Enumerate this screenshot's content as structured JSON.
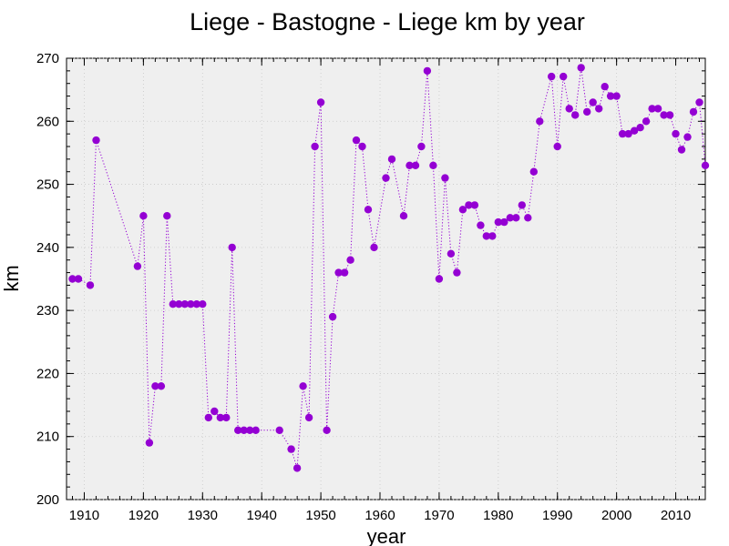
{
  "chart_data": {
    "type": "line",
    "title": "Liege - Bastogne - Liege km by year",
    "xlabel": "year",
    "ylabel": "km",
    "xlim": [
      1907,
      2015
    ],
    "ylim": [
      200,
      270
    ],
    "xticks": [
      1910,
      1920,
      1930,
      1940,
      1950,
      1960,
      1970,
      1980,
      1990,
      2000,
      2010
    ],
    "yticks": [
      200,
      210,
      220,
      230,
      240,
      250,
      260,
      270
    ],
    "grid": true,
    "series": [
      {
        "color": "#9400d3",
        "line_style": "dotted",
        "marker": "circle",
        "x": [
          1908,
          1909,
          1911,
          1912,
          1919,
          1920,
          1921,
          1922,
          1923,
          1924,
          1925,
          1926,
          1927,
          1928,
          1929,
          1930,
          1931,
          1932,
          1933,
          1934,
          1935,
          1936,
          1937,
          1938,
          1939,
          1943,
          1945,
          1946,
          1947,
          1948,
          1949,
          1950,
          1951,
          1952,
          1953,
          1954,
          1955,
          1956,
          1957,
          1958,
          1959,
          1961,
          1962,
          1964,
          1965,
          1966,
          1967,
          1968,
          1969,
          1970,
          1971,
          1972,
          1973,
          1974,
          1975,
          1976,
          1977,
          1978,
          1979,
          1980,
          1981,
          1982,
          1983,
          1984,
          1985,
          1986,
          1987,
          1989,
          1990,
          1991,
          1992,
          1993,
          1994,
          1995,
          1996,
          1997,
          1998,
          1999,
          2000,
          2001,
          2002,
          2003,
          2004,
          2005,
          2006,
          2007,
          2008,
          2009,
          2010,
          2011,
          2012,
          2013,
          2014,
          2015
        ],
        "y": [
          235,
          235,
          234,
          257,
          237,
          245,
          209,
          218,
          218,
          245,
          231,
          231,
          231,
          231,
          231,
          231,
          213,
          214,
          213,
          213,
          240,
          211,
          211,
          211,
          211,
          211,
          208,
          205,
          218,
          213,
          256,
          263,
          211,
          229,
          236,
          236,
          238,
          257,
          256,
          246,
          240,
          251,
          254,
          245,
          253,
          253,
          256,
          268,
          253,
          235,
          251,
          239,
          236,
          246,
          246.7,
          246.7,
          243.5,
          241.8,
          241.8,
          244,
          244,
          244.7,
          244.7,
          246.7,
          244.7,
          252,
          260,
          267.1,
          256,
          267.1,
          262,
          261,
          268.5,
          261.5,
          263,
          262,
          265.5,
          264,
          264,
          258,
          258,
          258.5,
          259,
          260,
          262,
          262,
          261,
          261,
          258,
          255.5,
          257.5,
          261.5,
          263,
          253
        ]
      }
    ]
  }
}
